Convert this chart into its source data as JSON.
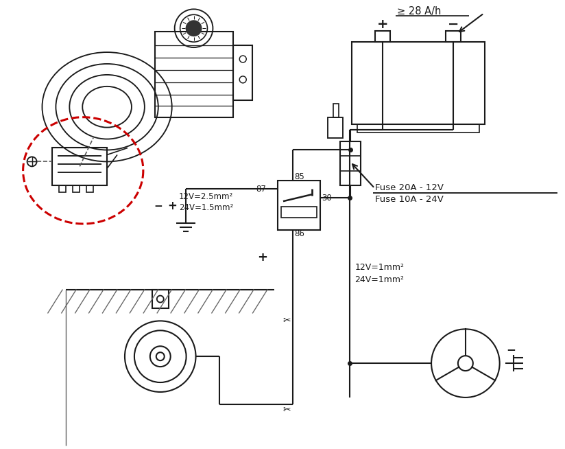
{
  "bg_color": "#ffffff",
  "lc": "#1a1a1a",
  "red_color": "#cc0000",
  "battery_label": "≥ 28 A/h",
  "bat_plus": "+",
  "bat_minus": "−",
  "fuse1": "Fuse 20A - 12V",
  "fuse2": "Fuse 10A - 24V",
  "wl1": "12V=2.5mm²",
  "wl2": "24V=1.5mm²",
  "wl3": "12V=1mm²",
  "wl4": "24V=1mm²",
  "r85": "85",
  "r87": "87",
  "r86": "86",
  "r30": "30",
  "plus": "+",
  "minus": "−"
}
